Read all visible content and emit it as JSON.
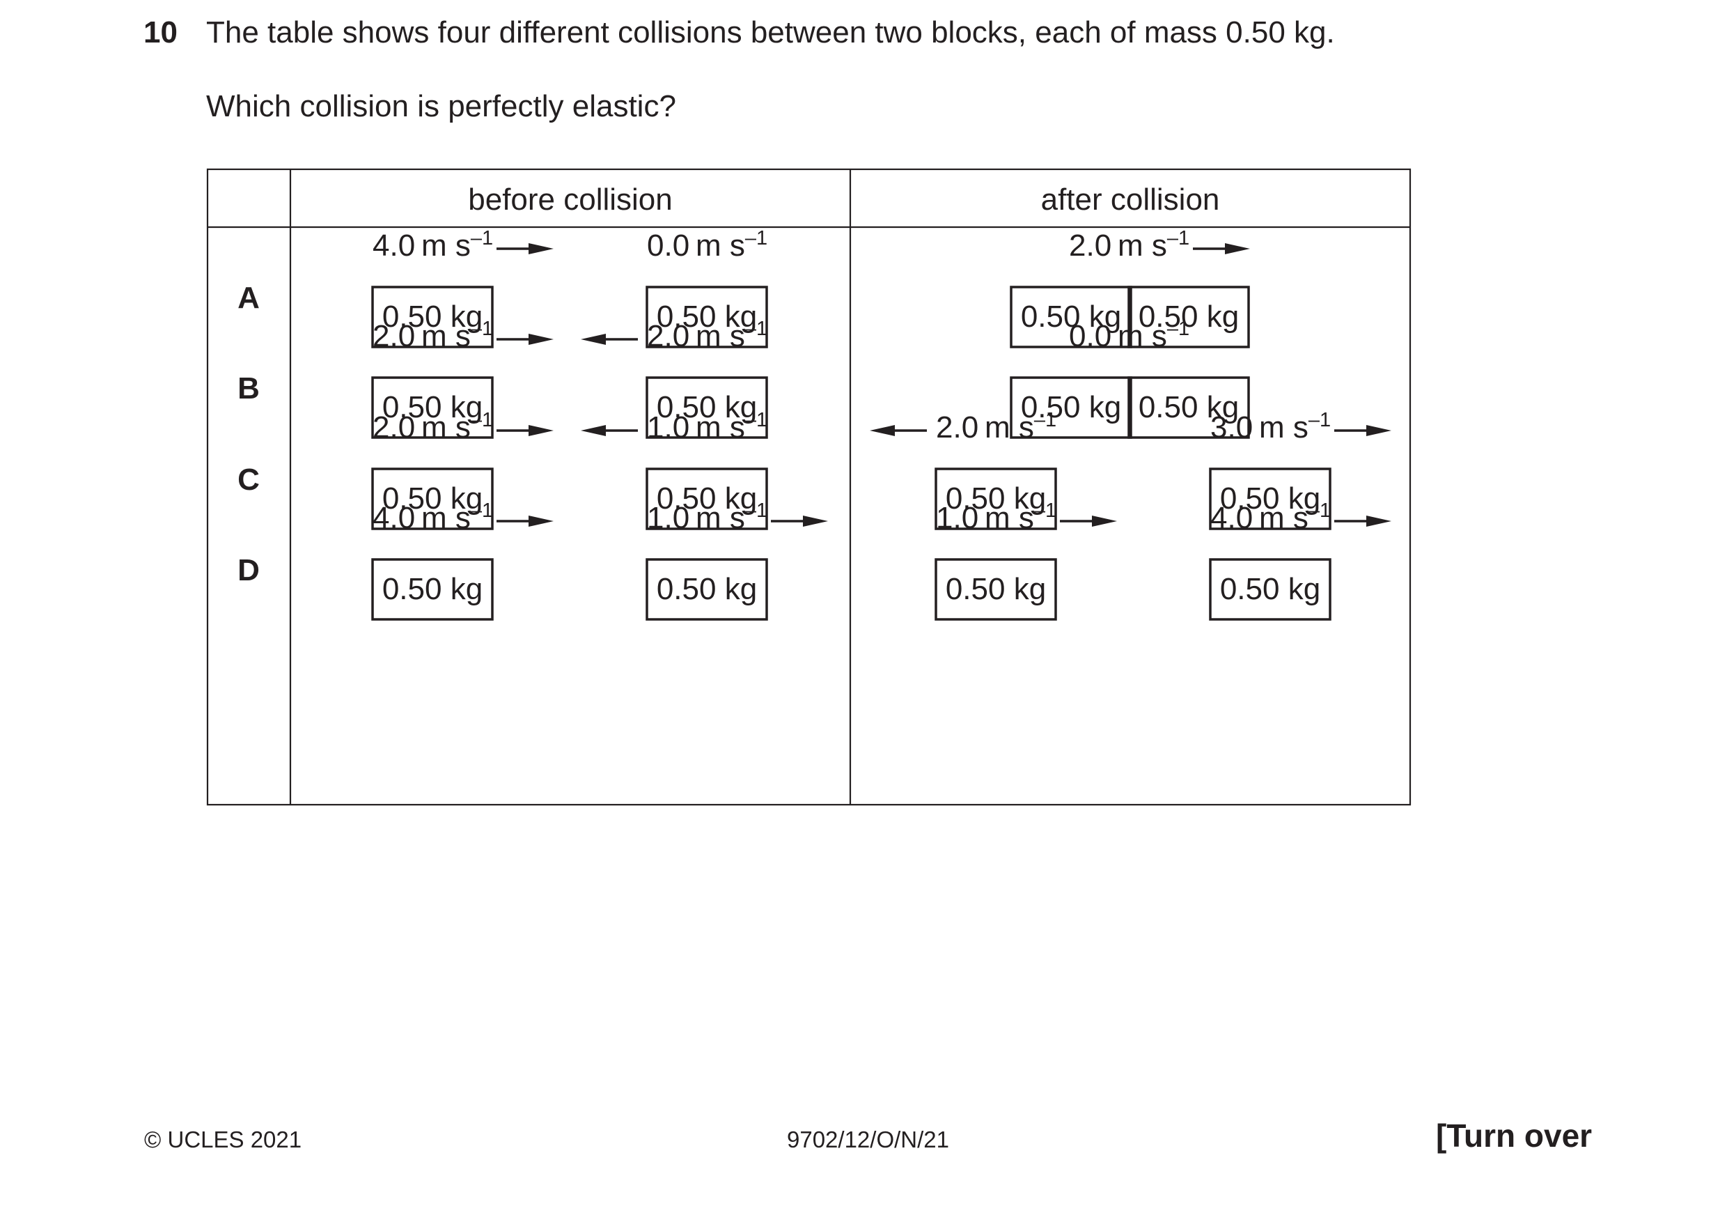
{
  "question": {
    "number": "10",
    "stem": "The table shows four different collisions between two blocks, each of mass 0.50 kg.",
    "prompt": "Which collision is perfectly elastic?"
  },
  "table": {
    "headers": {
      "before": "before collision",
      "after": "after collision"
    },
    "unit": "m s",
    "unit_power": "–1",
    "rows": [
      {
        "label": "A",
        "before": [
          {
            "speed": "4.0",
            "direction": "right",
            "mass": "0.50 kg"
          },
          {
            "speed": "0.0",
            "direction": "none",
            "mass": "0.50 kg"
          }
        ],
        "after_joined": true,
        "after": [
          {
            "speed": "2.0",
            "direction": "right",
            "masses": [
              "0.50 kg",
              "0.50 kg"
            ]
          }
        ]
      },
      {
        "label": "B",
        "before": [
          {
            "speed": "2.0",
            "direction": "right",
            "mass": "0.50 kg"
          },
          {
            "speed": "2.0",
            "direction": "left",
            "mass": "0.50 kg"
          }
        ],
        "after_joined": true,
        "after": [
          {
            "speed": "0.0",
            "direction": "none",
            "masses": [
              "0.50 kg",
              "0.50 kg"
            ]
          }
        ]
      },
      {
        "label": "C",
        "before": [
          {
            "speed": "2.0",
            "direction": "right",
            "mass": "0.50 kg"
          },
          {
            "speed": "1.0",
            "direction": "left",
            "mass": "0.50 kg"
          }
        ],
        "after_joined": false,
        "after": [
          {
            "speed": "2.0",
            "direction": "left",
            "mass": "0.50 kg"
          },
          {
            "speed": "3.0",
            "direction": "right",
            "mass": "0.50 kg"
          }
        ]
      },
      {
        "label": "D",
        "before": [
          {
            "speed": "4.0",
            "direction": "right",
            "mass": "0.50 kg"
          },
          {
            "speed": "1.0",
            "direction": "right",
            "mass": "0.50 kg"
          }
        ],
        "after_joined": false,
        "after": [
          {
            "speed": "1.0",
            "direction": "right",
            "mass": "0.50 kg"
          },
          {
            "speed": "4.0",
            "direction": "right",
            "mass": "0.50 kg"
          }
        ]
      }
    ]
  },
  "footer": {
    "copyright": "© UCLES 2021",
    "code": "9702/12/O/N/21",
    "turn_over": "[Turn over"
  }
}
